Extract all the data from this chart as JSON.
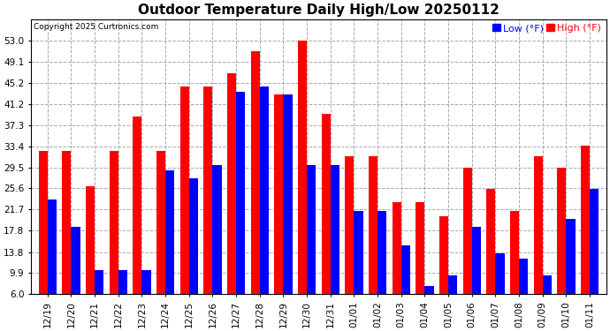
{
  "title": "Outdoor Temperature Daily High/Low 20250112",
  "copyright": "Copyright 2025 Curtronics.com",
  "legend_low": "Low (°F)",
  "legend_high": "High (°F)",
  "low_color": "blue",
  "high_color": "red",
  "dates": [
    "12/19",
    "12/20",
    "12/21",
    "12/22",
    "12/23",
    "12/24",
    "12/25",
    "12/26",
    "12/27",
    "12/28",
    "12/29",
    "12/30",
    "12/31",
    "01/01",
    "01/02",
    "01/03",
    "01/04",
    "01/05",
    "01/06",
    "01/07",
    "01/08",
    "01/09",
    "01/10",
    "01/11"
  ],
  "highs": [
    32.5,
    32.5,
    26.0,
    32.5,
    39.0,
    32.5,
    44.5,
    44.5,
    47.0,
    51.0,
    43.0,
    53.0,
    39.5,
    31.5,
    31.5,
    23.0,
    23.0,
    20.5,
    29.5,
    25.5,
    21.5,
    31.5,
    29.5,
    33.5
  ],
  "lows": [
    23.5,
    18.5,
    10.5,
    10.5,
    10.5,
    29.0,
    27.5,
    30.0,
    43.5,
    44.5,
    43.0,
    30.0,
    30.0,
    21.5,
    21.5,
    15.0,
    7.5,
    9.5,
    18.5,
    13.5,
    12.5,
    9.5,
    20.0,
    25.5
  ],
  "yticks": [
    6.0,
    9.9,
    13.8,
    17.8,
    21.7,
    25.6,
    29.5,
    33.4,
    37.3,
    41.2,
    45.2,
    49.1,
    53.0
  ],
  "ymin": 6.0,
  "ymax": 57.0,
  "background_color": "#ffffff",
  "grid_color": "#aaaaaa",
  "title_fontsize": 11,
  "tick_fontsize": 7.5,
  "bar_width": 0.38
}
